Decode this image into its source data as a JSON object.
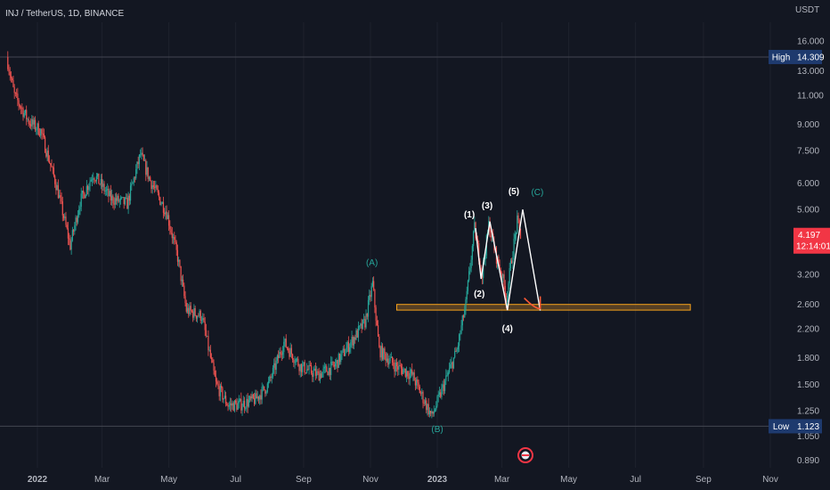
{
  "header": {
    "symbol": "INJ / TetherUS, 1D, BINANCE",
    "currency": "USDT"
  },
  "colors": {
    "background": "#131722",
    "up": "#26a69a",
    "down": "#ef5350",
    "zone_fill": "#7a5427",
    "zone_stroke": "#f7a21b",
    "axis_text": "#b2b5be",
    "wave_lines": "#ffffff",
    "projection": "#ff5a36",
    "price_tag": "#f23645",
    "hilo_tag": "#1e3a6e"
  },
  "y_axis": {
    "scale": "log",
    "ticks": [
      "16.000",
      "13.000",
      "11.000",
      "9.000",
      "7.500",
      "6.000",
      "5.000",
      "3.200",
      "2.600",
      "2.200",
      "1.800",
      "1.500",
      "1.250",
      "1.050",
      "0.890"
    ]
  },
  "x_axis": {
    "ticks": [
      "2022",
      "Mar",
      "May",
      "Jul",
      "Sep",
      "Nov",
      "2023",
      "Mar",
      "May",
      "Jul",
      "Sep",
      "Nov"
    ]
  },
  "markers": {
    "high": {
      "label": "High",
      "value": "14.309"
    },
    "low": {
      "label": "Low",
      "value": "1.123"
    },
    "last": {
      "price": "4.197",
      "countdown": "12:14:01"
    }
  },
  "wave_labels": {
    "A": "(A)",
    "B": "(B)",
    "C": "(C)",
    "w1": "(1)",
    "w2": "(2)",
    "w3": "(3)",
    "w4": "(4)",
    "w5": "(5)"
  },
  "chart_data": {
    "type": "candlestick",
    "title": "INJ / TetherUS, 1D, BINANCE",
    "y_scale": "log",
    "ylim": [
      0.87,
      17.2
    ],
    "series": [
      {
        "name": "INJ / TetherUS",
        "points": [
          {
            "date": "2021-12-05",
            "price": 14.3
          },
          {
            "date": "2021-12-12",
            "price": 11.0
          },
          {
            "date": "2021-12-25",
            "price": 9.2
          },
          {
            "date": "2022-01-05",
            "price": 8.6
          },
          {
            "date": "2022-01-20",
            "price": 5.8
          },
          {
            "date": "2022-02-01",
            "price": 3.9
          },
          {
            "date": "2022-02-10",
            "price": 5.3
          },
          {
            "date": "2022-02-22",
            "price": 6.4
          },
          {
            "date": "2022-03-10",
            "price": 5.4
          },
          {
            "date": "2022-03-25",
            "price": 5.2
          },
          {
            "date": "2022-04-06",
            "price": 7.3
          },
          {
            "date": "2022-04-15",
            "price": 6.1
          },
          {
            "date": "2022-04-30",
            "price": 4.9
          },
          {
            "date": "2022-05-10",
            "price": 3.6
          },
          {
            "date": "2022-05-18",
            "price": 2.5
          },
          {
            "date": "2022-06-01",
            "price": 2.4
          },
          {
            "date": "2022-06-14",
            "price": 1.5
          },
          {
            "date": "2022-06-25",
            "price": 1.3
          },
          {
            "date": "2022-07-05",
            "price": 1.3
          },
          {
            "date": "2022-07-20",
            "price": 1.35
          },
          {
            "date": "2022-08-01",
            "price": 1.5
          },
          {
            "date": "2022-08-15",
            "price": 2.0
          },
          {
            "date": "2022-08-30",
            "price": 1.7
          },
          {
            "date": "2022-09-15",
            "price": 1.6
          },
          {
            "date": "2022-09-30",
            "price": 1.7
          },
          {
            "date": "2022-10-15",
            "price": 2.0
          },
          {
            "date": "2022-10-28",
            "price": 2.3
          },
          {
            "date": "2022-11-04",
            "price": 3.0
          },
          {
            "date": "2022-11-10",
            "price": 1.9
          },
          {
            "date": "2022-11-25",
            "price": 1.7
          },
          {
            "date": "2022-12-10",
            "price": 1.6
          },
          {
            "date": "2022-12-28",
            "price": 1.2
          },
          {
            "date": "2023-01-10",
            "price": 1.55
          },
          {
            "date": "2023-01-20",
            "price": 1.9
          },
          {
            "date": "2023-01-28",
            "price": 2.6
          },
          {
            "date": "2023-02-05",
            "price": 4.4
          },
          {
            "date": "2023-02-12",
            "price": 3.2
          },
          {
            "date": "2023-02-18",
            "price": 4.5
          },
          {
            "date": "2023-02-25",
            "price": 3.6
          },
          {
            "date": "2023-03-02",
            "price": 3.2
          },
          {
            "date": "2023-03-06",
            "price": 2.7
          },
          {
            "date": "2023-03-10",
            "price": 3.4
          },
          {
            "date": "2023-03-16",
            "price": 4.6
          },
          {
            "date": "2023-03-19",
            "price": 4.197
          }
        ]
      }
    ],
    "support_zone": {
      "from": "2022-11-25",
      "to": "2023-08-20",
      "low": 2.5,
      "high": 2.6
    },
    "wave_path": [
      {
        "date": "2023-02-05",
        "price": 4.4,
        "label": "(1)"
      },
      {
        "date": "2023-02-10",
        "price": 3.1,
        "label": "(2)"
      },
      {
        "date": "2023-02-18",
        "price": 4.6,
        "label": "(3)"
      },
      {
        "date": "2023-03-06",
        "price": 2.5,
        "label": "(4)"
      },
      {
        "date": "2023-03-20",
        "price": 5.0,
        "label": "(5)"
      }
    ],
    "projection": [
      {
        "date": "2023-03-20",
        "price": 5.0
      },
      {
        "date": "2023-04-05",
        "price": 2.65
      },
      {
        "date": "2023-05-05",
        "price": 2.5
      }
    ],
    "abc_labels": [
      {
        "label": "(A)",
        "date": "2022-11-04",
        "price": 3.1
      },
      {
        "label": "(B)",
        "date": "2022-12-28",
        "price": 1.12
      },
      {
        "label": "(C)",
        "date": "2023-03-22",
        "price": 5.1
      }
    ],
    "last_price": 4.197,
    "high": 14.309,
    "low": 1.123,
    "grid": false
  }
}
